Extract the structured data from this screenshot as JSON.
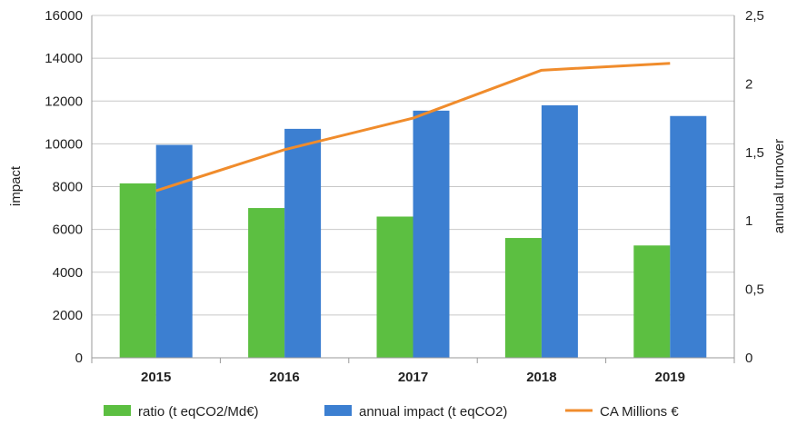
{
  "chart_data": {
    "type": "bar",
    "categories": [
      "2015",
      "2016",
      "2017",
      "2018",
      "2019"
    ],
    "series": [
      {
        "name": "ratio (t eqCO2/Md€)",
        "kind": "bar",
        "axis": "left",
        "color": "#5cbf41",
        "values": [
          8150,
          7000,
          6600,
          5600,
          5250
        ]
      },
      {
        "name": "annual impact (t eqCO2)",
        "kind": "bar",
        "axis": "left",
        "color": "#3c7fd1",
        "values": [
          9950,
          10700,
          11550,
          11800,
          11300
        ]
      },
      {
        "name": "CA Millions €",
        "kind": "line",
        "axis": "right",
        "color": "#f08c2c",
        "values": [
          1.22,
          1.52,
          1.75,
          2.1,
          2.15
        ]
      }
    ],
    "ylabel": "impact",
    "y2label": "annual turnover",
    "ylim": [
      0,
      16000
    ],
    "y2lim": [
      0,
      2.5
    ],
    "yticks": [
      "0",
      "2000",
      "4000",
      "6000",
      "8000",
      "10000",
      "12000",
      "14000",
      "16000"
    ],
    "y2ticks": [
      "0",
      "0,5",
      "1",
      "1,5",
      "2",
      "2,5"
    ],
    "grid": true,
    "legend": "bottom"
  }
}
